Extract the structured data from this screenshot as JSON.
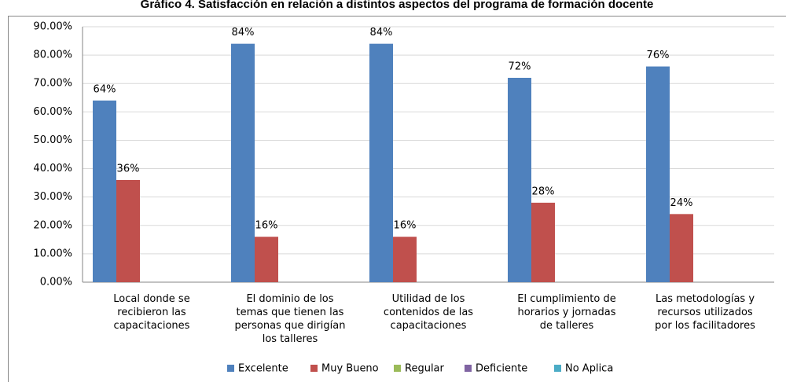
{
  "chart_data": {
    "type": "bar",
    "title": "Gráfico 4. Satisfacción en relación a distintos aspectos del programa de formación docente",
    "categories": [
      "Local donde se\nrecibieron las\ncapacitaciones",
      "El dominio de los\ntemas que tienen las\npersonas que dirigían\nlos talleres",
      "Utilidad de los\ncontenidos de las\ncapacitaciones",
      "El cumplimiento de\nhorarios y jornadas\nde talleres",
      "Las metodologías y\nrecursos utilizados\npor los facilitadores"
    ],
    "series": [
      {
        "name": "Excelente",
        "color": "#4f81bd",
        "values": [
          64,
          84,
          84,
          72,
          76
        ],
        "value_labels": [
          "64%",
          "84%",
          "84%",
          "72%",
          "76%"
        ]
      },
      {
        "name": "Muy Bueno",
        "color": "#c0504d",
        "values": [
          36,
          16,
          16,
          28,
          24
        ],
        "value_labels": [
          "36%",
          "16%",
          "16%",
          "28%",
          "24%"
        ]
      },
      {
        "name": "Regular",
        "color": "#9bbb59",
        "values": [
          0,
          0,
          0,
          0,
          0
        ]
      },
      {
        "name": "Deficiente",
        "color": "#8064a2",
        "values": [
          0,
          0,
          0,
          0,
          0
        ]
      },
      {
        "name": "No Aplica",
        "color": "#4bacc6",
        "values": [
          0,
          0,
          0,
          0,
          0
        ]
      }
    ],
    "ylim": [
      0,
      90
    ],
    "yticks": [
      {
        "value": 0,
        "label": "0.00%"
      },
      {
        "value": 10,
        "label": "10.00%"
      },
      {
        "value": 20,
        "label": "20.00%"
      },
      {
        "value": 30,
        "label": "30.00%"
      },
      {
        "value": 40,
        "label": "40.00%"
      },
      {
        "value": 50,
        "label": "50.00%"
      },
      {
        "value": 60,
        "label": "60.00%"
      },
      {
        "value": 70,
        "label": "70.00%"
      },
      {
        "value": 80,
        "label": "80.00%"
      },
      {
        "value": 90,
        "label": "90.00%"
      }
    ],
    "grid": true,
    "legend": "bottom"
  }
}
